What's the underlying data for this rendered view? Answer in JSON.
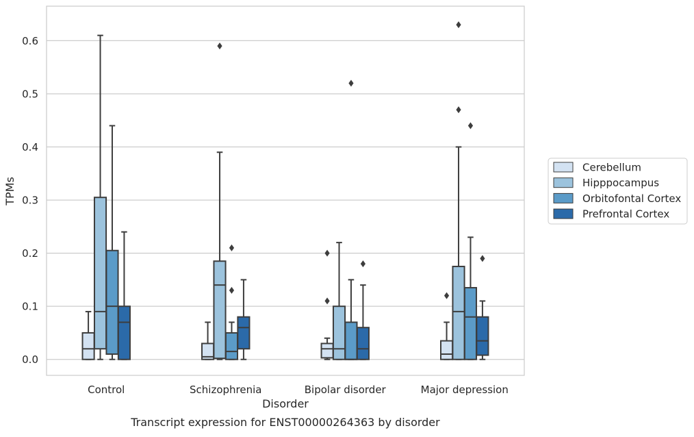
{
  "chart_data": {
    "type": "box",
    "title": "",
    "caption": "Transcript expression for ENST00000264363 by disorder",
    "xlabel": "Disorder",
    "ylabel": "TPMs",
    "categories": [
      "Control",
      "Schizophrenia",
      "Bipolar disorder",
      "Major depression"
    ],
    "ylim": [
      -0.03,
      0.665
    ],
    "yticks": [
      0.0,
      0.1,
      0.2,
      0.3,
      0.4,
      0.5,
      0.6
    ],
    "ytick_labels": [
      "0.0",
      "0.1",
      "0.2",
      "0.3",
      "0.4",
      "0.5",
      "0.6"
    ],
    "grid": "horizontal",
    "legend_position": "right",
    "series": [
      {
        "name": "Cerebellum",
        "color": "#d3e2f2",
        "boxes": [
          {
            "min": 0.0,
            "q1": 0.0,
            "median": 0.02,
            "q3": 0.05,
            "max": 0.09,
            "outliers": []
          },
          {
            "min": 0.0,
            "q1": 0.0,
            "median": 0.005,
            "q3": 0.03,
            "max": 0.07,
            "outliers": []
          },
          {
            "min": 0.0,
            "q1": 0.003,
            "median": 0.02,
            "q3": 0.03,
            "max": 0.04,
            "outliers": [
              0.2,
              0.11
            ]
          },
          {
            "min": 0.0,
            "q1": 0.0,
            "median": 0.01,
            "q3": 0.035,
            "max": 0.07,
            "outliers": [
              0.12
            ]
          }
        ]
      },
      {
        "name": "Hipppocampus",
        "color": "#9cc3dd",
        "boxes": [
          {
            "min": 0.0,
            "q1": 0.02,
            "median": 0.09,
            "q3": 0.305,
            "max": 0.61,
            "outliers": []
          },
          {
            "min": 0.0,
            "q1": 0.002,
            "median": 0.14,
            "q3": 0.185,
            "max": 0.39,
            "outliers": [
              0.59
            ]
          },
          {
            "min": 0.0,
            "q1": 0.0,
            "median": 0.02,
            "q3": 0.1,
            "max": 0.22,
            "outliers": []
          },
          {
            "min": 0.0,
            "q1": 0.0,
            "median": 0.09,
            "q3": 0.175,
            "max": 0.4,
            "outliers": [
              0.63,
              0.47
            ]
          }
        ]
      },
      {
        "name": "Orbitofontal Cortex",
        "color": "#5b9bc8",
        "boxes": [
          {
            "min": 0.0,
            "q1": 0.01,
            "median": 0.1,
            "q3": 0.205,
            "max": 0.44,
            "outliers": []
          },
          {
            "min": 0.0,
            "q1": 0.0,
            "median": 0.015,
            "q3": 0.05,
            "max": 0.07,
            "outliers": [
              0.21,
              0.13
            ]
          },
          {
            "min": 0.0,
            "q1": 0.0,
            "median": 0.0,
            "q3": 0.07,
            "max": 0.15,
            "outliers": [
              0.52
            ]
          },
          {
            "min": 0.0,
            "q1": 0.0,
            "median": 0.08,
            "q3": 0.135,
            "max": 0.23,
            "outliers": [
              0.44
            ]
          }
        ]
      },
      {
        "name": "Prefrontal Cortex",
        "color": "#2b6aa9",
        "boxes": [
          {
            "min": 0.0,
            "q1": 0.0,
            "median": 0.07,
            "q3": 0.1,
            "max": 0.24,
            "outliers": []
          },
          {
            "min": 0.0,
            "q1": 0.02,
            "median": 0.06,
            "q3": 0.08,
            "max": 0.15,
            "outliers": []
          },
          {
            "min": 0.0,
            "q1": 0.0,
            "median": 0.02,
            "q3": 0.06,
            "max": 0.14,
            "outliers": [
              0.18
            ]
          },
          {
            "min": 0.0,
            "q1": 0.008,
            "median": 0.035,
            "q3": 0.08,
            "max": 0.11,
            "outliers": [
              0.19
            ]
          }
        ]
      }
    ]
  }
}
